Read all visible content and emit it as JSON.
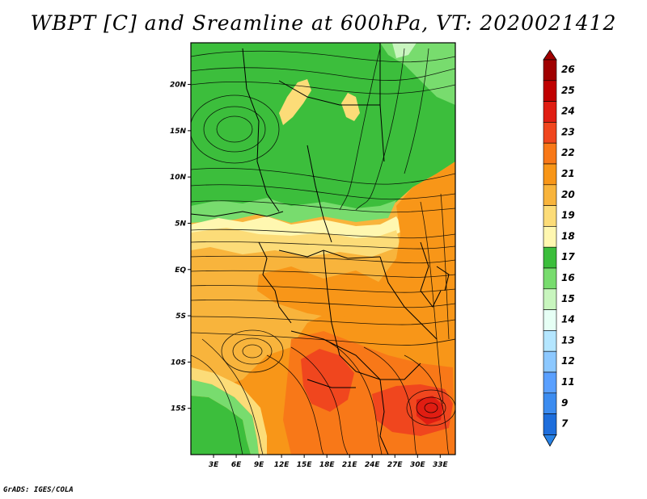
{
  "title": "WBPT [C] and Sreamline at 600hPa, VT: 2020021412",
  "credit": "GrADS: IGES/COLA",
  "map": {
    "lat_ticks": [
      {
        "lat": 20,
        "label": "20N"
      },
      {
        "lat": 15,
        "label": "15N"
      },
      {
        "lat": 10,
        "label": "10N"
      },
      {
        "lat": 5,
        "label": "5N"
      },
      {
        "lat": 0,
        "label": "EQ"
      },
      {
        "lat": -5,
        "label": "5S"
      },
      {
        "lat": -10,
        "label": "10S"
      },
      {
        "lat": -15,
        "label": "15S"
      }
    ],
    "lon_ticks": [
      {
        "lon": 3,
        "label": "3E"
      },
      {
        "lon": 6,
        "label": "6E"
      },
      {
        "lon": 9,
        "label": "9E"
      },
      {
        "lon": 12,
        "label": "12E"
      },
      {
        "lon": 15,
        "label": "15E"
      },
      {
        "lon": 18,
        "label": "18E"
      },
      {
        "lon": 21,
        "label": "21E"
      },
      {
        "lon": 24,
        "label": "24E"
      },
      {
        "lon": 27,
        "label": "27E"
      },
      {
        "lon": 30,
        "label": "30E"
      },
      {
        "lon": 33,
        "label": "33E"
      }
    ],
    "lon_range": [
      0,
      35
    ],
    "lat_range": [
      -20,
      24.5
    ]
  },
  "colorbar": {
    "levels": [
      {
        "label": "26",
        "color": "#a00000"
      },
      {
        "label": "25",
        "color": "#c00000"
      },
      {
        "label": "24",
        "color": "#e01d12"
      },
      {
        "label": "23",
        "color": "#f0461e"
      },
      {
        "label": "22",
        "color": "#f87818"
      },
      {
        "label": "21",
        "color": "#f89618"
      },
      {
        "label": "20",
        "color": "#f8b43c"
      },
      {
        "label": "19",
        "color": "#fcdc78"
      },
      {
        "label": "18",
        "color": "#fff7b0"
      },
      {
        "label": "17",
        "color": "#3cbe3c"
      },
      {
        "label": "16",
        "color": "#78dc6e"
      },
      {
        "label": "15",
        "color": "#c8f5be"
      },
      {
        "label": "14",
        "color": "#e6fff5"
      },
      {
        "label": "13",
        "color": "#b4e6ff"
      },
      {
        "label": "12",
        "color": "#8cc8ff"
      },
      {
        "label": "11",
        "color": "#5aa0ff"
      },
      {
        "label": "9",
        "color": "#3c8cf0"
      },
      {
        "label": "7",
        "color": "#1e6edc"
      }
    ],
    "bottom_color": "#2882e6"
  }
}
